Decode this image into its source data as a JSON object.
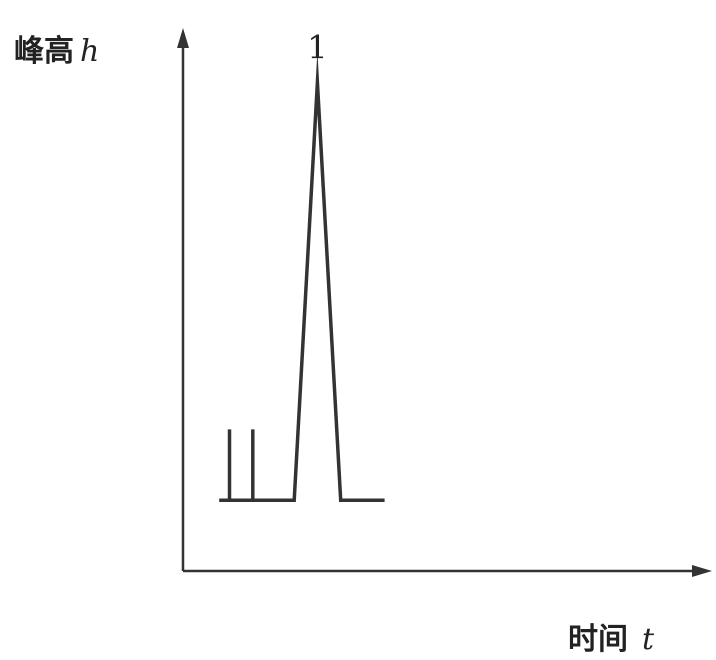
{
  "chart_data": {
    "type": "line",
    "title": "",
    "ylabel": {
      "text": "峰高",
      "symbol": "h"
    },
    "xlabel": {
      "text": "时间",
      "symbol": "t"
    },
    "series": [
      {
        "x": [
          0.7,
          0.9,
          0.9,
          0.9,
          1.35,
          1.35,
          1.35,
          2.15,
          2.6,
          3.05,
          3.9
        ],
        "y": [
          0,
          0,
          1,
          0,
          0,
          1,
          0,
          0,
          5.9,
          0,
          0
        ]
      }
    ],
    "annotations": [
      {
        "text": "1",
        "x": 2.6,
        "y": 5.9
      }
    ],
    "xlim": [
      0,
      10
    ],
    "ylim": [
      -1,
      6.5
    ],
    "grid": false,
    "axis_color": "#333333",
    "line_color": "#333333"
  }
}
